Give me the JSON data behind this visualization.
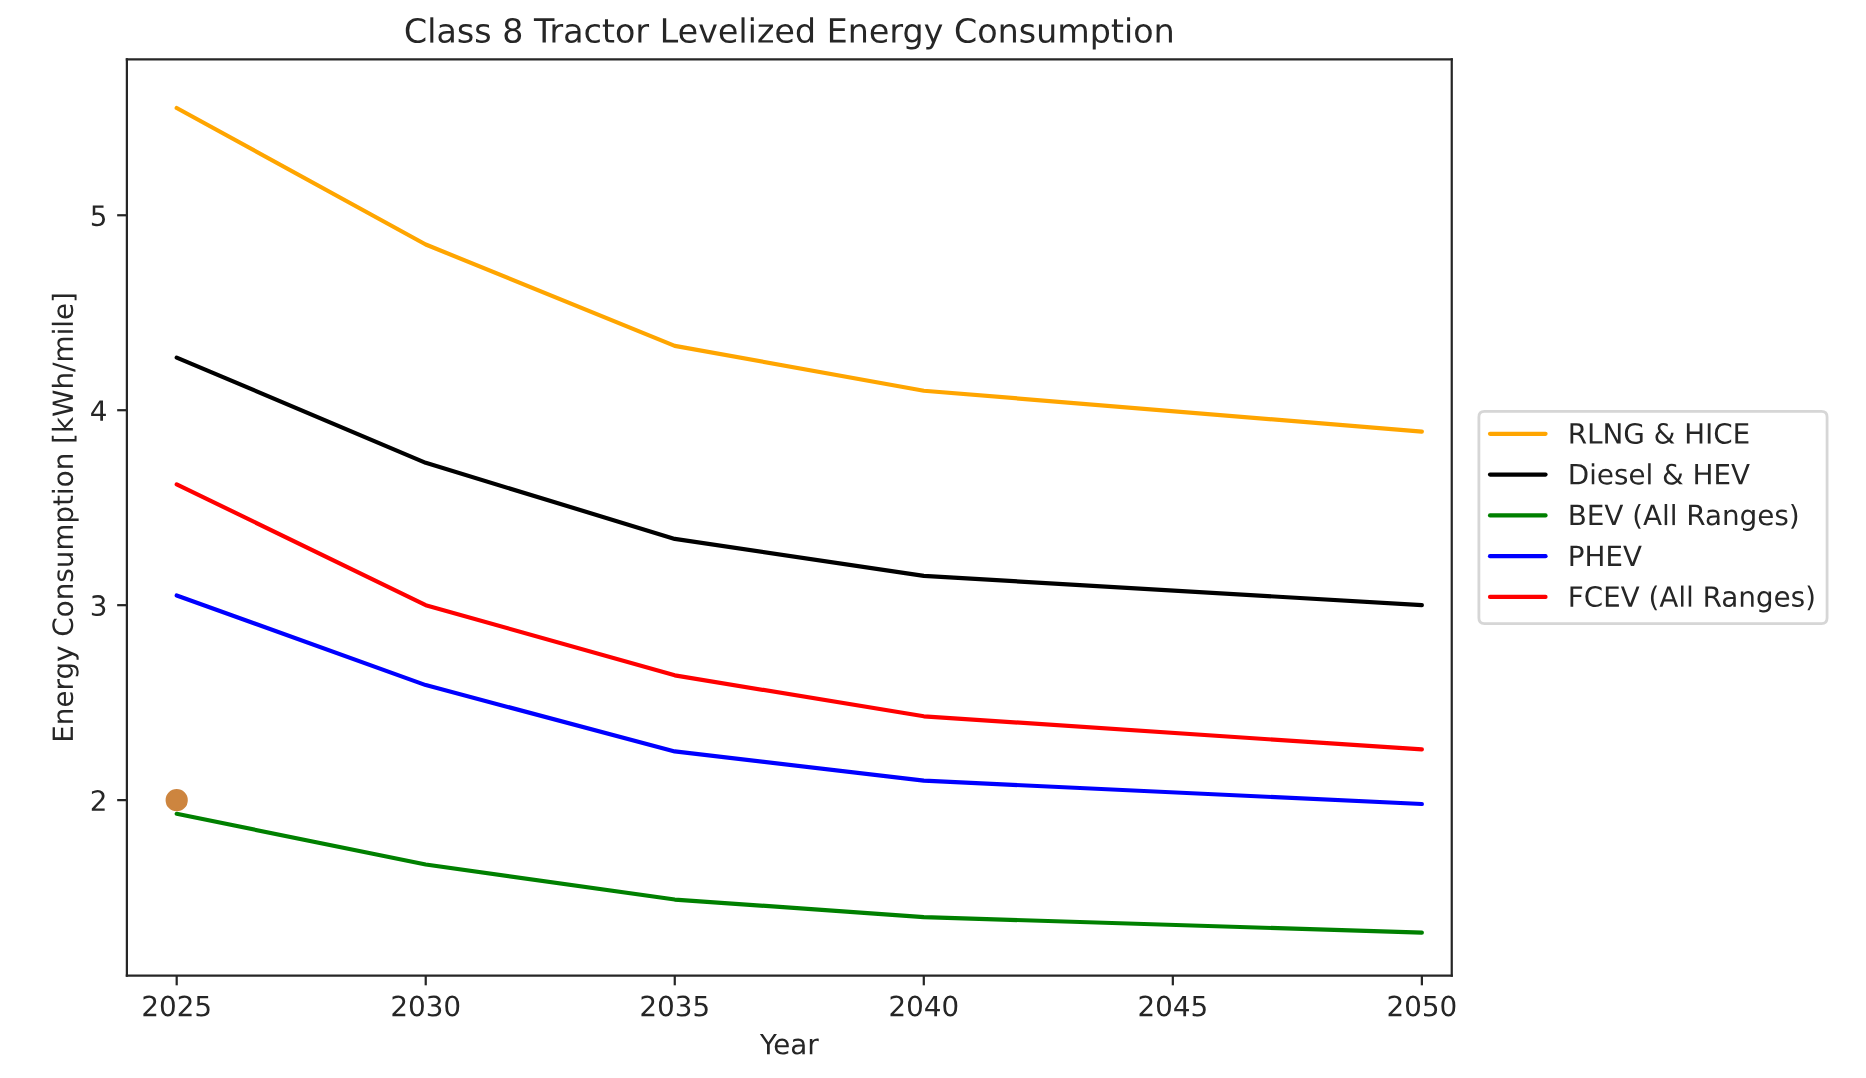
{
  "chart_data": {
    "type": "line",
    "title": "Class 8 Tractor Levelized Energy Consumption",
    "xlabel": "Year",
    "ylabel": "Energy Consumption [kWh/mile]",
    "x": [
      2025,
      2030,
      2035,
      2040,
      2050
    ],
    "series": [
      {
        "name": "RLNG & HICE",
        "color": "#ffa500",
        "values": [
          5.55,
          4.85,
          4.33,
          4.1,
          3.89
        ]
      },
      {
        "name": "Diesel & HEV",
        "color": "#000000",
        "values": [
          4.27,
          3.73,
          3.34,
          3.15,
          3.0
        ]
      },
      {
        "name": "BEV (All Ranges)",
        "color": "#008000",
        "values": [
          1.93,
          1.67,
          1.49,
          1.4,
          1.32
        ]
      },
      {
        "name": "PHEV",
        "color": "#0000ff",
        "values": [
          3.05,
          2.59,
          2.25,
          2.1,
          1.98
        ]
      },
      {
        "name": "FCEV (All Ranges)",
        "color": "#ff0000",
        "values": [
          3.62,
          3.0,
          2.64,
          2.43,
          2.26
        ]
      },
      {
        "color": "#cd853f",
        "x": [
          2025
        ],
        "values": [
          2.0
        ],
        "marker": "circle"
      }
    ],
    "xlim": [
      2024,
      2050.6
    ],
    "xticks": [
      2025,
      2030,
      2035,
      2040,
      2045,
      2050
    ],
    "ylim": [
      1.1,
      5.8
    ],
    "yticks": [
      2,
      3,
      4,
      5
    ],
    "grid": false,
    "legend": "right",
    "marker": "none",
    "line_style": "solid"
  }
}
